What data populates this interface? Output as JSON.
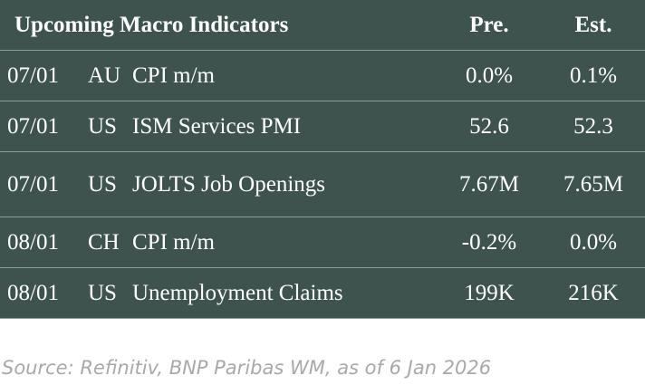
{
  "header": {
    "title": "Upcoming Macro Indicators",
    "pre": "Pre.",
    "est": "Est."
  },
  "table": {
    "rows": [
      [
        "07/01",
        "AU",
        "CPI m/m",
        "0.0%",
        "0.1%"
      ],
      [
        "07/01",
        "US",
        "ISM Services PMI",
        "52.6",
        "52.3"
      ],
      [
        "07/01",
        "US",
        "JOLTS Job Openings",
        "7.67M",
        "7.65M"
      ],
      [
        "08/01",
        "CH",
        "CPI m/m",
        "-0.2%",
        "0.0%"
      ],
      [
        "08/01",
        "US",
        "Unemployment Claims",
        "199K",
        "216K"
      ]
    ]
  },
  "source": "Source: Refinitiv, BNP Paribas WM, as of 6 Jan 2026"
}
